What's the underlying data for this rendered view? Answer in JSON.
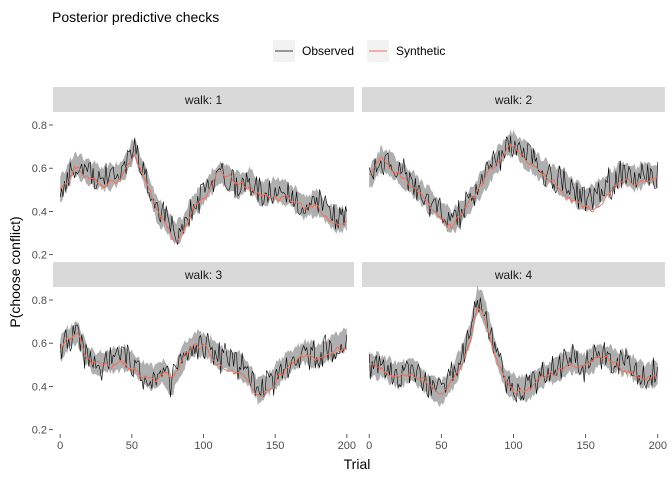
{
  "chart_data": {
    "type": "line",
    "title": "Posterior predictive checks",
    "xlabel": "Trial",
    "ylabel": "P(choose conflict)",
    "xlim": [
      -5,
      205
    ],
    "ylim": [
      0.18,
      0.86
    ],
    "x_ticks": [
      0,
      50,
      100,
      150,
      200
    ],
    "y_ticks": [
      0.2,
      0.4,
      0.6,
      0.8
    ],
    "grid": false,
    "legend_position": "top-center",
    "legend": [
      {
        "name": "Observed",
        "color": "#000000"
      },
      {
        "name": "Synthetic",
        "color": "#e8705a"
      }
    ],
    "band_color": "#a6a6a6",
    "trials": 201,
    "facets": [
      {
        "label": "walk: 1",
        "observed_knots": [
          [
            0,
            0.5
          ],
          [
            10,
            0.62
          ],
          [
            20,
            0.58
          ],
          [
            30,
            0.55
          ],
          [
            40,
            0.57
          ],
          [
            45,
            0.6
          ],
          [
            52,
            0.7
          ],
          [
            55,
            0.63
          ],
          [
            60,
            0.55
          ],
          [
            68,
            0.4
          ],
          [
            75,
            0.35
          ],
          [
            80,
            0.3
          ],
          [
            85,
            0.32
          ],
          [
            92,
            0.42
          ],
          [
            100,
            0.48
          ],
          [
            105,
            0.53
          ],
          [
            112,
            0.58
          ],
          [
            118,
            0.55
          ],
          [
            125,
            0.52
          ],
          [
            132,
            0.55
          ],
          [
            140,
            0.48
          ],
          [
            150,
            0.5
          ],
          [
            160,
            0.48
          ],
          [
            170,
            0.42
          ],
          [
            180,
            0.44
          ],
          [
            188,
            0.38
          ],
          [
            195,
            0.36
          ],
          [
            200,
            0.37
          ]
        ],
        "synthetic_knots": [
          [
            0,
            0.5
          ],
          [
            10,
            0.6
          ],
          [
            20,
            0.56
          ],
          [
            30,
            0.52
          ],
          [
            40,
            0.55
          ],
          [
            45,
            0.58
          ],
          [
            52,
            0.66
          ],
          [
            55,
            0.62
          ],
          [
            60,
            0.53
          ],
          [
            68,
            0.4
          ],
          [
            75,
            0.34
          ],
          [
            80,
            0.27
          ],
          [
            85,
            0.3
          ],
          [
            92,
            0.4
          ],
          [
            100,
            0.47
          ],
          [
            105,
            0.52
          ],
          [
            112,
            0.6
          ],
          [
            118,
            0.56
          ],
          [
            125,
            0.53
          ],
          [
            132,
            0.52
          ],
          [
            140,
            0.47
          ],
          [
            150,
            0.46
          ],
          [
            160,
            0.45
          ],
          [
            170,
            0.42
          ],
          [
            180,
            0.43
          ],
          [
            188,
            0.34
          ],
          [
            195,
            0.35
          ],
          [
            200,
            0.36
          ]
        ]
      },
      {
        "label": "walk: 2",
        "observed_knots": [
          [
            0,
            0.55
          ],
          [
            8,
            0.64
          ],
          [
            15,
            0.62
          ],
          [
            22,
            0.57
          ],
          [
            30,
            0.53
          ],
          [
            40,
            0.46
          ],
          [
            50,
            0.4
          ],
          [
            57,
            0.35
          ],
          [
            62,
            0.38
          ],
          [
            70,
            0.45
          ],
          [
            80,
            0.55
          ],
          [
            88,
            0.63
          ],
          [
            95,
            0.7
          ],
          [
            100,
            0.72
          ],
          [
            105,
            0.68
          ],
          [
            112,
            0.64
          ],
          [
            120,
            0.59
          ],
          [
            130,
            0.55
          ],
          [
            140,
            0.5
          ],
          [
            150,
            0.45
          ],
          [
            158,
            0.48
          ],
          [
            165,
            0.52
          ],
          [
            175,
            0.58
          ],
          [
            185,
            0.55
          ],
          [
            192,
            0.58
          ],
          [
            200,
            0.56
          ]
        ],
        "synthetic_knots": [
          [
            0,
            0.58
          ],
          [
            8,
            0.64
          ],
          [
            15,
            0.6
          ],
          [
            22,
            0.56
          ],
          [
            30,
            0.51
          ],
          [
            40,
            0.44
          ],
          [
            50,
            0.38
          ],
          [
            57,
            0.33
          ],
          [
            62,
            0.37
          ],
          [
            70,
            0.44
          ],
          [
            80,
            0.54
          ],
          [
            88,
            0.62
          ],
          [
            95,
            0.68
          ],
          [
            100,
            0.7
          ],
          [
            105,
            0.67
          ],
          [
            112,
            0.63
          ],
          [
            120,
            0.58
          ],
          [
            130,
            0.52
          ],
          [
            140,
            0.45
          ],
          [
            150,
            0.41
          ],
          [
            158,
            0.42
          ],
          [
            165,
            0.49
          ],
          [
            175,
            0.55
          ],
          [
            185,
            0.53
          ],
          [
            192,
            0.56
          ],
          [
            200,
            0.55
          ]
        ]
      },
      {
        "label": "walk: 3",
        "observed_knots": [
          [
            0,
            0.57
          ],
          [
            5,
            0.62
          ],
          [
            12,
            0.65
          ],
          [
            18,
            0.55
          ],
          [
            25,
            0.5
          ],
          [
            35,
            0.52
          ],
          [
            45,
            0.53
          ],
          [
            52,
            0.5
          ],
          [
            58,
            0.46
          ],
          [
            65,
            0.44
          ],
          [
            72,
            0.47
          ],
          [
            78,
            0.4
          ],
          [
            82,
            0.48
          ],
          [
            88,
            0.56
          ],
          [
            95,
            0.6
          ],
          [
            100,
            0.59
          ],
          [
            105,
            0.57
          ],
          [
            112,
            0.53
          ],
          [
            118,
            0.52
          ],
          [
            125,
            0.5
          ],
          [
            132,
            0.45
          ],
          [
            138,
            0.38
          ],
          [
            145,
            0.41
          ],
          [
            152,
            0.46
          ],
          [
            160,
            0.51
          ],
          [
            170,
            0.56
          ],
          [
            180,
            0.54
          ],
          [
            190,
            0.58
          ],
          [
            200,
            0.62
          ]
        ],
        "synthetic_knots": [
          [
            0,
            0.58
          ],
          [
            5,
            0.62
          ],
          [
            12,
            0.64
          ],
          [
            18,
            0.54
          ],
          [
            25,
            0.5
          ],
          [
            35,
            0.5
          ],
          [
            45,
            0.51
          ],
          [
            52,
            0.48
          ],
          [
            58,
            0.44
          ],
          [
            65,
            0.43
          ],
          [
            72,
            0.45
          ],
          [
            78,
            0.43
          ],
          [
            82,
            0.47
          ],
          [
            88,
            0.56
          ],
          [
            95,
            0.6
          ],
          [
            100,
            0.58
          ],
          [
            105,
            0.55
          ],
          [
            112,
            0.5
          ],
          [
            118,
            0.47
          ],
          [
            125,
            0.45
          ],
          [
            132,
            0.42
          ],
          [
            138,
            0.35
          ],
          [
            145,
            0.38
          ],
          [
            152,
            0.44
          ],
          [
            160,
            0.5
          ],
          [
            170,
            0.54
          ],
          [
            180,
            0.53
          ],
          [
            190,
            0.56
          ],
          [
            200,
            0.58
          ]
        ]
      },
      {
        "label": "walk: 4",
        "observed_knots": [
          [
            0,
            0.5
          ],
          [
            10,
            0.49
          ],
          [
            20,
            0.45
          ],
          [
            30,
            0.48
          ],
          [
            40,
            0.41
          ],
          [
            50,
            0.37
          ],
          [
            58,
            0.44
          ],
          [
            65,
            0.55
          ],
          [
            70,
            0.64
          ],
          [
            75,
            0.8
          ],
          [
            78,
            0.78
          ],
          [
            82,
            0.7
          ],
          [
            88,
            0.55
          ],
          [
            95,
            0.42
          ],
          [
            100,
            0.4
          ],
          [
            110,
            0.39
          ],
          [
            120,
            0.45
          ],
          [
            130,
            0.48
          ],
          [
            140,
            0.52
          ],
          [
            150,
            0.5
          ],
          [
            160,
            0.55
          ],
          [
            170,
            0.52
          ],
          [
            180,
            0.5
          ],
          [
            190,
            0.45
          ],
          [
            200,
            0.46
          ]
        ],
        "synthetic_knots": [
          [
            0,
            0.52
          ],
          [
            10,
            0.48
          ],
          [
            20,
            0.44
          ],
          [
            30,
            0.46
          ],
          [
            40,
            0.42
          ],
          [
            50,
            0.36
          ],
          [
            58,
            0.43
          ],
          [
            65,
            0.52
          ],
          [
            70,
            0.62
          ],
          [
            75,
            0.76
          ],
          [
            78,
            0.74
          ],
          [
            82,
            0.68
          ],
          [
            88,
            0.54
          ],
          [
            95,
            0.43
          ],
          [
            100,
            0.38
          ],
          [
            110,
            0.38
          ],
          [
            120,
            0.44
          ],
          [
            130,
            0.47
          ],
          [
            140,
            0.5
          ],
          [
            150,
            0.5
          ],
          [
            160,
            0.54
          ],
          [
            170,
            0.51
          ],
          [
            180,
            0.47
          ],
          [
            190,
            0.44
          ],
          [
            200,
            0.45
          ]
        ]
      }
    ]
  }
}
